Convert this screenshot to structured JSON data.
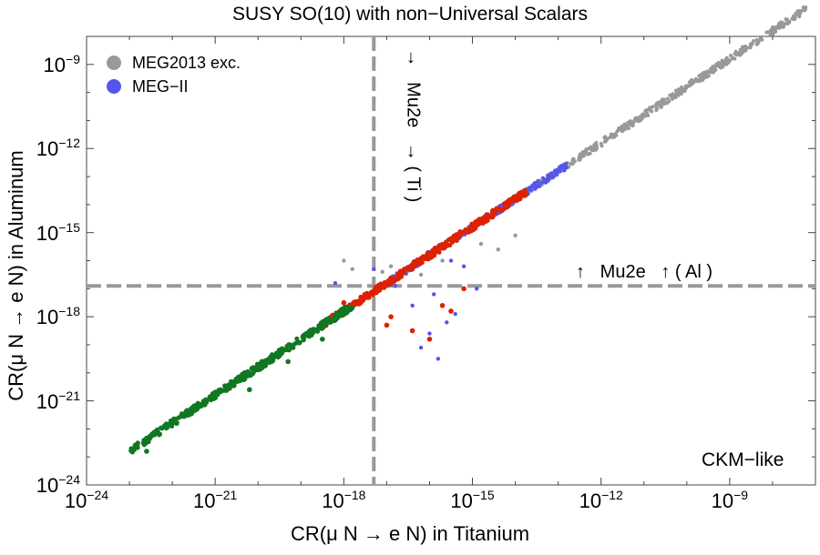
{
  "chart_data": {
    "type": "scatter",
    "title": "SUSY SO(10)  with non−Universal Scalars",
    "xlabel": "CR(μ N → e N) in Titanium",
    "ylabel": "CR(μ N → e N) in Aluminum",
    "x_scale": "log",
    "y_scale": "log",
    "xlim_exp": [
      -24,
      -7
    ],
    "ylim_exp": [
      -24,
      -8
    ],
    "x_ticks": [
      {
        "base": "10",
        "exp": "−24"
      },
      {
        "base": "10",
        "exp": "−21"
      },
      {
        "base": "10",
        "exp": "−18"
      },
      {
        "base": "10",
        "exp": "−15"
      },
      {
        "base": "10",
        "exp": "−12"
      },
      {
        "base": "10",
        "exp": "−9"
      }
    ],
    "y_ticks": [
      {
        "base": "10",
        "exp": "−24"
      },
      {
        "base": "10",
        "exp": "−21"
      },
      {
        "base": "10",
        "exp": "−18"
      },
      {
        "base": "10",
        "exp": "−15"
      },
      {
        "base": "10",
        "exp": "−12"
      },
      {
        "base": "10",
        "exp": "−9"
      }
    ],
    "legend": {
      "placement": "top-left",
      "entries": [
        {
          "label": "MEG2013 exc.",
          "color": "#999999"
        },
        {
          "label": "MEG−II",
          "color": "#5555ee"
        }
      ]
    },
    "thresholds": {
      "vertical_log10_x": -17.3,
      "horizontal_log10_y": -16.9,
      "vertical_label": "→   Mu2e   → ( Ti )",
      "horizontal_label": "↑   Mu2e   ↑ ( Al )"
    },
    "annotation": "CKM−like",
    "series": [
      {
        "name": "MEG2013 exc.",
        "color": "#999999",
        "band_log10_x": [
          -14.5,
          -7.2
        ],
        "outliers_log10": [
          [
            -18.0,
            -16.0
          ],
          [
            -17.8,
            -16.3
          ],
          [
            -17.1,
            -16.4
          ],
          [
            -16.9,
            -16.2
          ],
          [
            -16.2,
            -16.5
          ],
          [
            -15.7,
            -16.0
          ],
          [
            -15.3,
            -15.2
          ],
          [
            -14.8,
            -15.4
          ],
          [
            -14.4,
            -15.6
          ],
          [
            -14.0,
            -15.1
          ]
        ]
      },
      {
        "name": "MEG−II",
        "color": "#5555ee",
        "band_log10_x": [
          -17.0,
          -12.8
        ],
        "outliers_log10": [
          [
            -18.2,
            -16.8
          ],
          [
            -17.3,
            -16.3
          ],
          [
            -16.8,
            -16.9
          ],
          [
            -16.4,
            -17.6
          ],
          [
            -16.0,
            -18.6
          ],
          [
            -15.8,
            -19.5
          ],
          [
            -15.6,
            -18.2
          ],
          [
            -15.4,
            -17.9
          ],
          [
            -15.2,
            -16.2
          ],
          [
            -15.9,
            -17.2
          ],
          [
            -16.2,
            -19.1
          ],
          [
            -14.9,
            -17.0
          ],
          [
            -15.5,
            -16.0
          ]
        ]
      },
      {
        "name": "red",
        "color": "#dd2200",
        "band_log10_x": [
          -18.5,
          -13.7
        ],
        "outliers_log10": [
          [
            -18.0,
            -17.5
          ],
          [
            -16.4,
            -18.5
          ],
          [
            -16.0,
            -18.8
          ],
          [
            -15.7,
            -17.6
          ],
          [
            -15.5,
            -17.8
          ],
          [
            -15.2,
            -17.0
          ],
          [
            -16.9,
            -18.0
          ],
          [
            -17.0,
            -18.3
          ]
        ]
      },
      {
        "name": "green",
        "color": "#117722",
        "band_log10_x": [
          -23.0,
          -17.8
        ],
        "outliers_log10": [
          [
            -22.6,
            -22.8
          ],
          [
            -21.9,
            -21.8
          ],
          [
            -19.3,
            -19.6
          ],
          [
            -20.2,
            -20.6
          ],
          [
            -18.5,
            -18.8
          ],
          [
            -21.4,
            -21.1
          ]
        ]
      }
    ]
  }
}
